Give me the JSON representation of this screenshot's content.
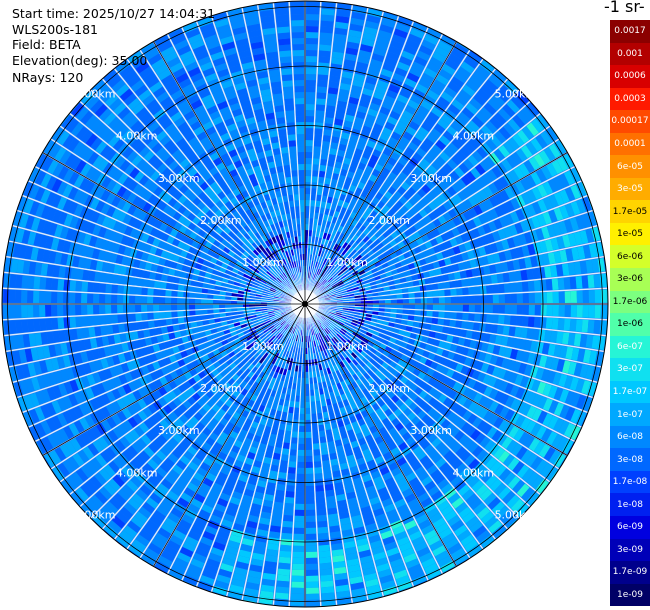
{
  "header": {
    "start_time": "Start time: 2025/10/27 14:04:31",
    "instrument": "WLS200s-181",
    "field": "Field: BETA",
    "elevation": "Elevation(deg): 35.00",
    "nrays": "NRays: 120"
  },
  "colorbar": {
    "title": "-1 sr-",
    "levels": [
      {
        "label": "0.0017",
        "color": "#8b0000",
        "text": "#ffffff"
      },
      {
        "label": "0.001",
        "color": "#b30000",
        "text": "#ffffff"
      },
      {
        "label": "0.0006",
        "color": "#d80000",
        "text": "#ffffff"
      },
      {
        "label": "0.0003",
        "color": "#ff1a00",
        "text": "#ffffff"
      },
      {
        "label": "0.00017",
        "color": "#ff4a00",
        "text": "#ffffff"
      },
      {
        "label": "0.0001",
        "color": "#ff7000",
        "text": "#ffffff"
      },
      {
        "label": "6e-05",
        "color": "#ff9000",
        "text": "#ffffff"
      },
      {
        "label": "3e-05",
        "color": "#ffac00",
        "text": "#ffffff"
      },
      {
        "label": "1.7e-05",
        "color": "#ffd400",
        "text": "#000000"
      },
      {
        "label": "1e-05",
        "color": "#fff000",
        "text": "#000000"
      },
      {
        "label": "6e-06",
        "color": "#d4ff2a",
        "text": "#000000"
      },
      {
        "label": "3e-06",
        "color": "#a8ff55",
        "text": "#000000"
      },
      {
        "label": "1.7e-06",
        "color": "#7cff80",
        "text": "#000000"
      },
      {
        "label": "1e-06",
        "color": "#50ffaa",
        "text": "#000000"
      },
      {
        "label": "6e-07",
        "color": "#26f5d6",
        "text": "#ffffff"
      },
      {
        "label": "3e-07",
        "color": "#10e0f0",
        "text": "#ffffff"
      },
      {
        "label": "1.7e-07",
        "color": "#00c8ff",
        "text": "#ffffff"
      },
      {
        "label": "1e-07",
        "color": "#00a8ff",
        "text": "#ffffff"
      },
      {
        "label": "6e-08",
        "color": "#0088ff",
        "text": "#ffffff"
      },
      {
        "label": "3e-08",
        "color": "#0068ff",
        "text": "#ffffff"
      },
      {
        "label": "1.7e-08",
        "color": "#0040ff",
        "text": "#ffffff"
      },
      {
        "label": "1e-08",
        "color": "#0020f0",
        "text": "#ffffff"
      },
      {
        "label": "6e-09",
        "color": "#0000e0",
        "text": "#ffffff"
      },
      {
        "label": "3e-09",
        "color": "#0000b8",
        "text": "#ffffff"
      },
      {
        "label": "1.7e-09",
        "color": "#00008c",
        "text": "#ffffff"
      },
      {
        "label": "1e-09",
        "color": "#000066",
        "text": "#ffffff"
      }
    ]
  },
  "rings": [
    "1.00km",
    "2.00km",
    "3.00km",
    "4.00km",
    "5.00km"
  ],
  "colors": {
    "background_field": "#1e78f0",
    "grid_line": "#000000",
    "range_label": "#ffffff"
  }
}
